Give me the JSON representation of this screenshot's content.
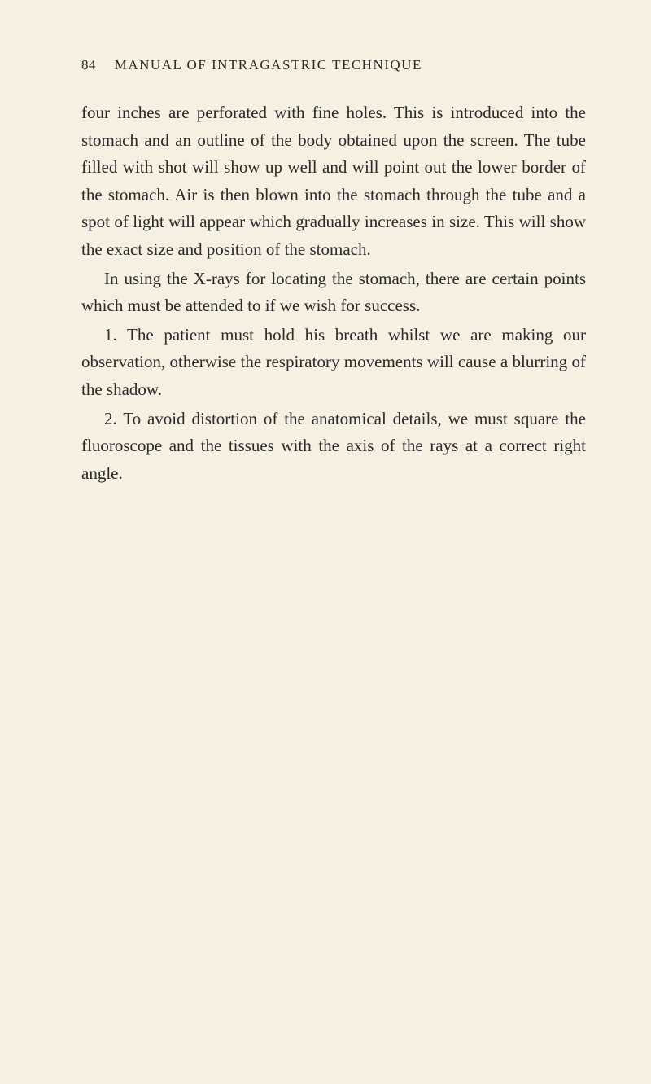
{
  "page": {
    "number": "84",
    "header_title": "MANUAL OF INTRAGASTRIC TECHNIQUE",
    "background_color": "#f5f0e1",
    "text_color": "#2a2a2a",
    "body_fontsize": 21,
    "header_fontsize": 17,
    "line_height": 1.6,
    "paragraphs": [
      {
        "text": "four inches are perforated with fine holes. This is introduced into the stomach and an outline of the body obtained upon the screen. The tube filled with shot will show up well and will point out the lower border of the stomach. Air is then blown into the stomach through the tube and a spot of light will appear which gradually increases in size. This will show the exact size and position of the stomach.",
        "indent": false
      },
      {
        "text": "In using the X-rays for locating the stomach, there are certain points which must be attended to if we wish for success.",
        "indent": true
      },
      {
        "text": "1. The patient must hold his breath whilst we are making our observation, otherwise the respiratory movements will cause a blurring of the shadow.",
        "indent": true
      },
      {
        "text": "2. To avoid distortion of the anatomical details, we must square the fluoroscope and the tissues with the axis of the rays at a correct right angle.",
        "indent": true
      }
    ]
  }
}
